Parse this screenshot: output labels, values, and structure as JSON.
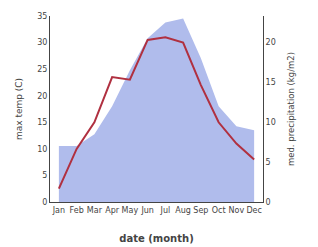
{
  "chart_data": {
    "type": "line",
    "categories": [
      "Jan",
      "Feb",
      "Mar",
      "Apr",
      "May",
      "Jun",
      "Jul",
      "Aug",
      "Sep",
      "Oct",
      "Nov",
      "Dec"
    ],
    "series": [
      {
        "type": "area",
        "axis": "y2",
        "color": "#b0bcec",
        "values": [
          7.0,
          7.0,
          8.5,
          12.0,
          16.5,
          20.5,
          22.5,
          23.0,
          18.0,
          12.0,
          9.5,
          9.0
        ]
      },
      {
        "type": "line",
        "color": "#b03040",
        "values": [
          2.5,
          10.0,
          15.0,
          23.5,
          23.0,
          30.5,
          31.0,
          30.0,
          22.0,
          15.0,
          11.0,
          8.0
        ]
      }
    ],
    "xlabel": "date (month)",
    "ylabel": "max temp (C)",
    "y2label": "med. precipitation (kg/m2)",
    "ylim": [
      0,
      35
    ],
    "yticks": [
      0,
      5,
      10,
      15,
      20,
      25,
      30,
      35
    ],
    "y2lim": [
      0,
      23.3
    ],
    "y2ticks": [
      0,
      5,
      10,
      15,
      20
    ],
    "grid": false
  }
}
